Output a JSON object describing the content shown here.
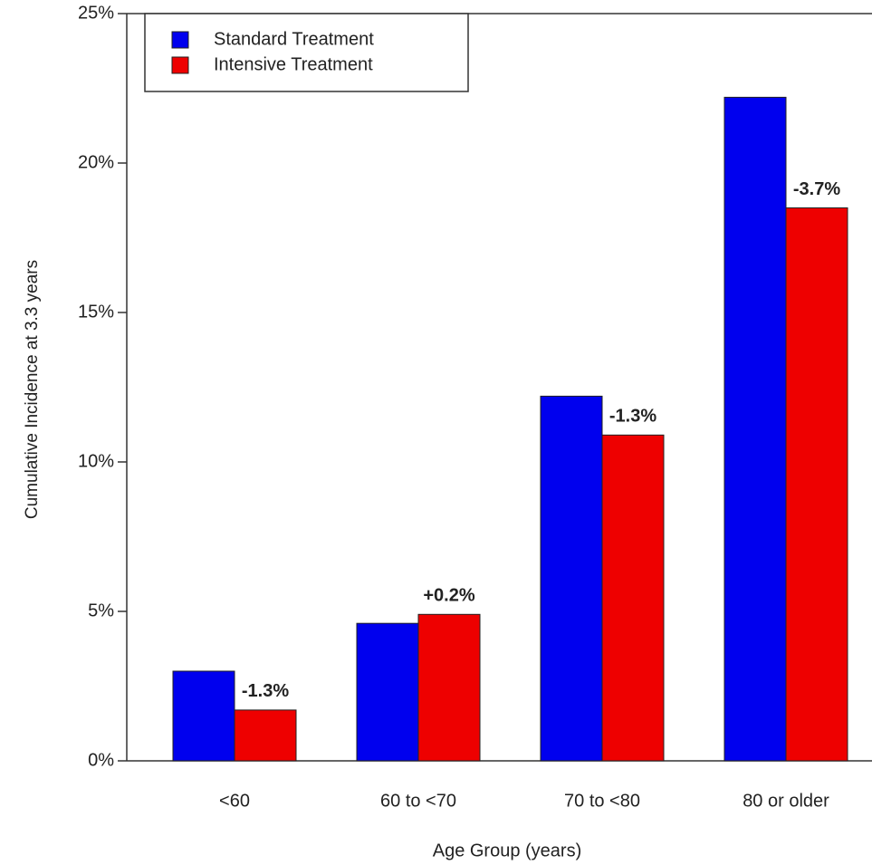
{
  "chart_data": {
    "type": "bar",
    "x_label": "Age Group (years)",
    "y_label": "Cumulative Incidence at 3.3 years",
    "categories": [
      "<60",
      "60 to <70",
      "70 to <80",
      "80 or older"
    ],
    "series": [
      {
        "name": "Standard Treatment",
        "color": "#0000ee",
        "values": [
          3.0,
          4.6,
          12.2,
          22.2
        ]
      },
      {
        "name": "Intensive Treatment",
        "color": "#ee0000",
        "values": [
          1.7,
          4.9,
          10.9,
          18.5
        ]
      }
    ],
    "annotations": [
      "-1.3%",
      "+0.2%",
      "-1.3%",
      "-3.7%"
    ],
    "ylim": [
      0,
      25
    ],
    "yticks": [
      {
        "value": 0,
        "label": "0%"
      },
      {
        "value": 5,
        "label": "5%"
      },
      {
        "value": 10,
        "label": "10%"
      },
      {
        "value": 15,
        "label": "15%"
      },
      {
        "value": 20,
        "label": "20%"
      },
      {
        "value": 25,
        "label": "25%"
      }
    ],
    "legend": "upper left"
  }
}
